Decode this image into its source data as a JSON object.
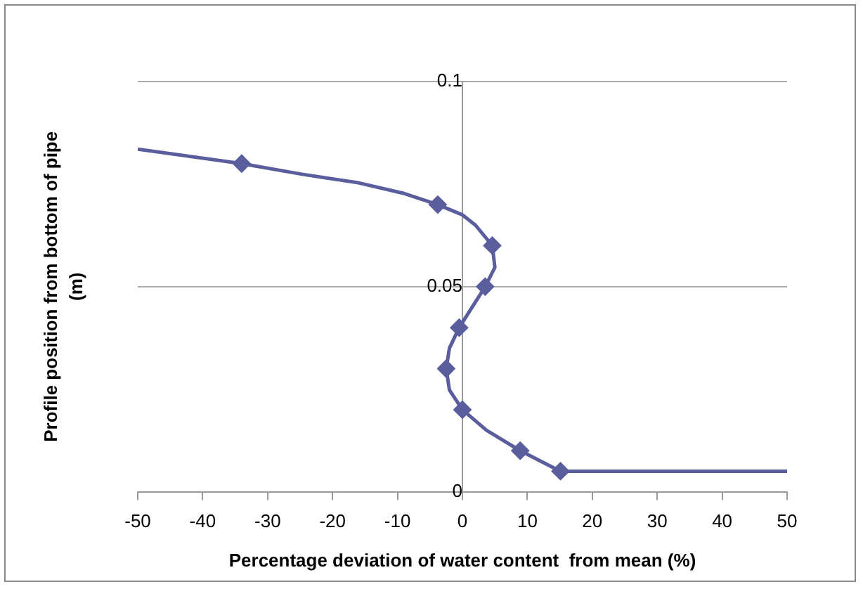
{
  "chart_data": {
    "type": "line",
    "xlabel": "Percentage deviation of water content  from mean (%)",
    "ylabel": "Profile position from bottom of pipe (m)",
    "xlim": [
      -50,
      50
    ],
    "xticks": [
      -50,
      -40,
      -30,
      -20,
      -10,
      0,
      10,
      20,
      30,
      40,
      50
    ],
    "ylim": [
      0,
      0.1
    ],
    "yticks": [
      0,
      0.05,
      0.1
    ],
    "grid": "y",
    "legend": false,
    "series": [
      {
        "type": "line",
        "marker": "none",
        "color": "#5b5e9c",
        "x": [
          -50,
          -34,
          -24.7,
          -16,
          -9.2,
          -3.8,
          0,
          2,
          4.6,
          5,
          3.5,
          -0.5,
          -2,
          -2.5,
          -2,
          0,
          3.7,
          8.9,
          15.1,
          50
        ],
        "values": [
          0.0835,
          0.08,
          0.0774,
          0.0753,
          0.0728,
          0.07,
          0.0675,
          0.065,
          0.06,
          0.0547,
          0.05,
          0.04,
          0.035,
          0.03,
          0.0248,
          0.02,
          0.015,
          0.01,
          0.005,
          0.005
        ]
      },
      {
        "type": "scatter",
        "marker": "diamond",
        "color": "#5b5e9c",
        "x": [
          -34,
          -3.8,
          4.6,
          3.5,
          -0.5,
          -2.5,
          0,
          8.9,
          15.1
        ],
        "values": [
          0.08,
          0.07,
          0.06,
          0.05,
          0.04,
          0.03,
          0.02,
          0.01,
          0.005
        ]
      }
    ]
  }
}
